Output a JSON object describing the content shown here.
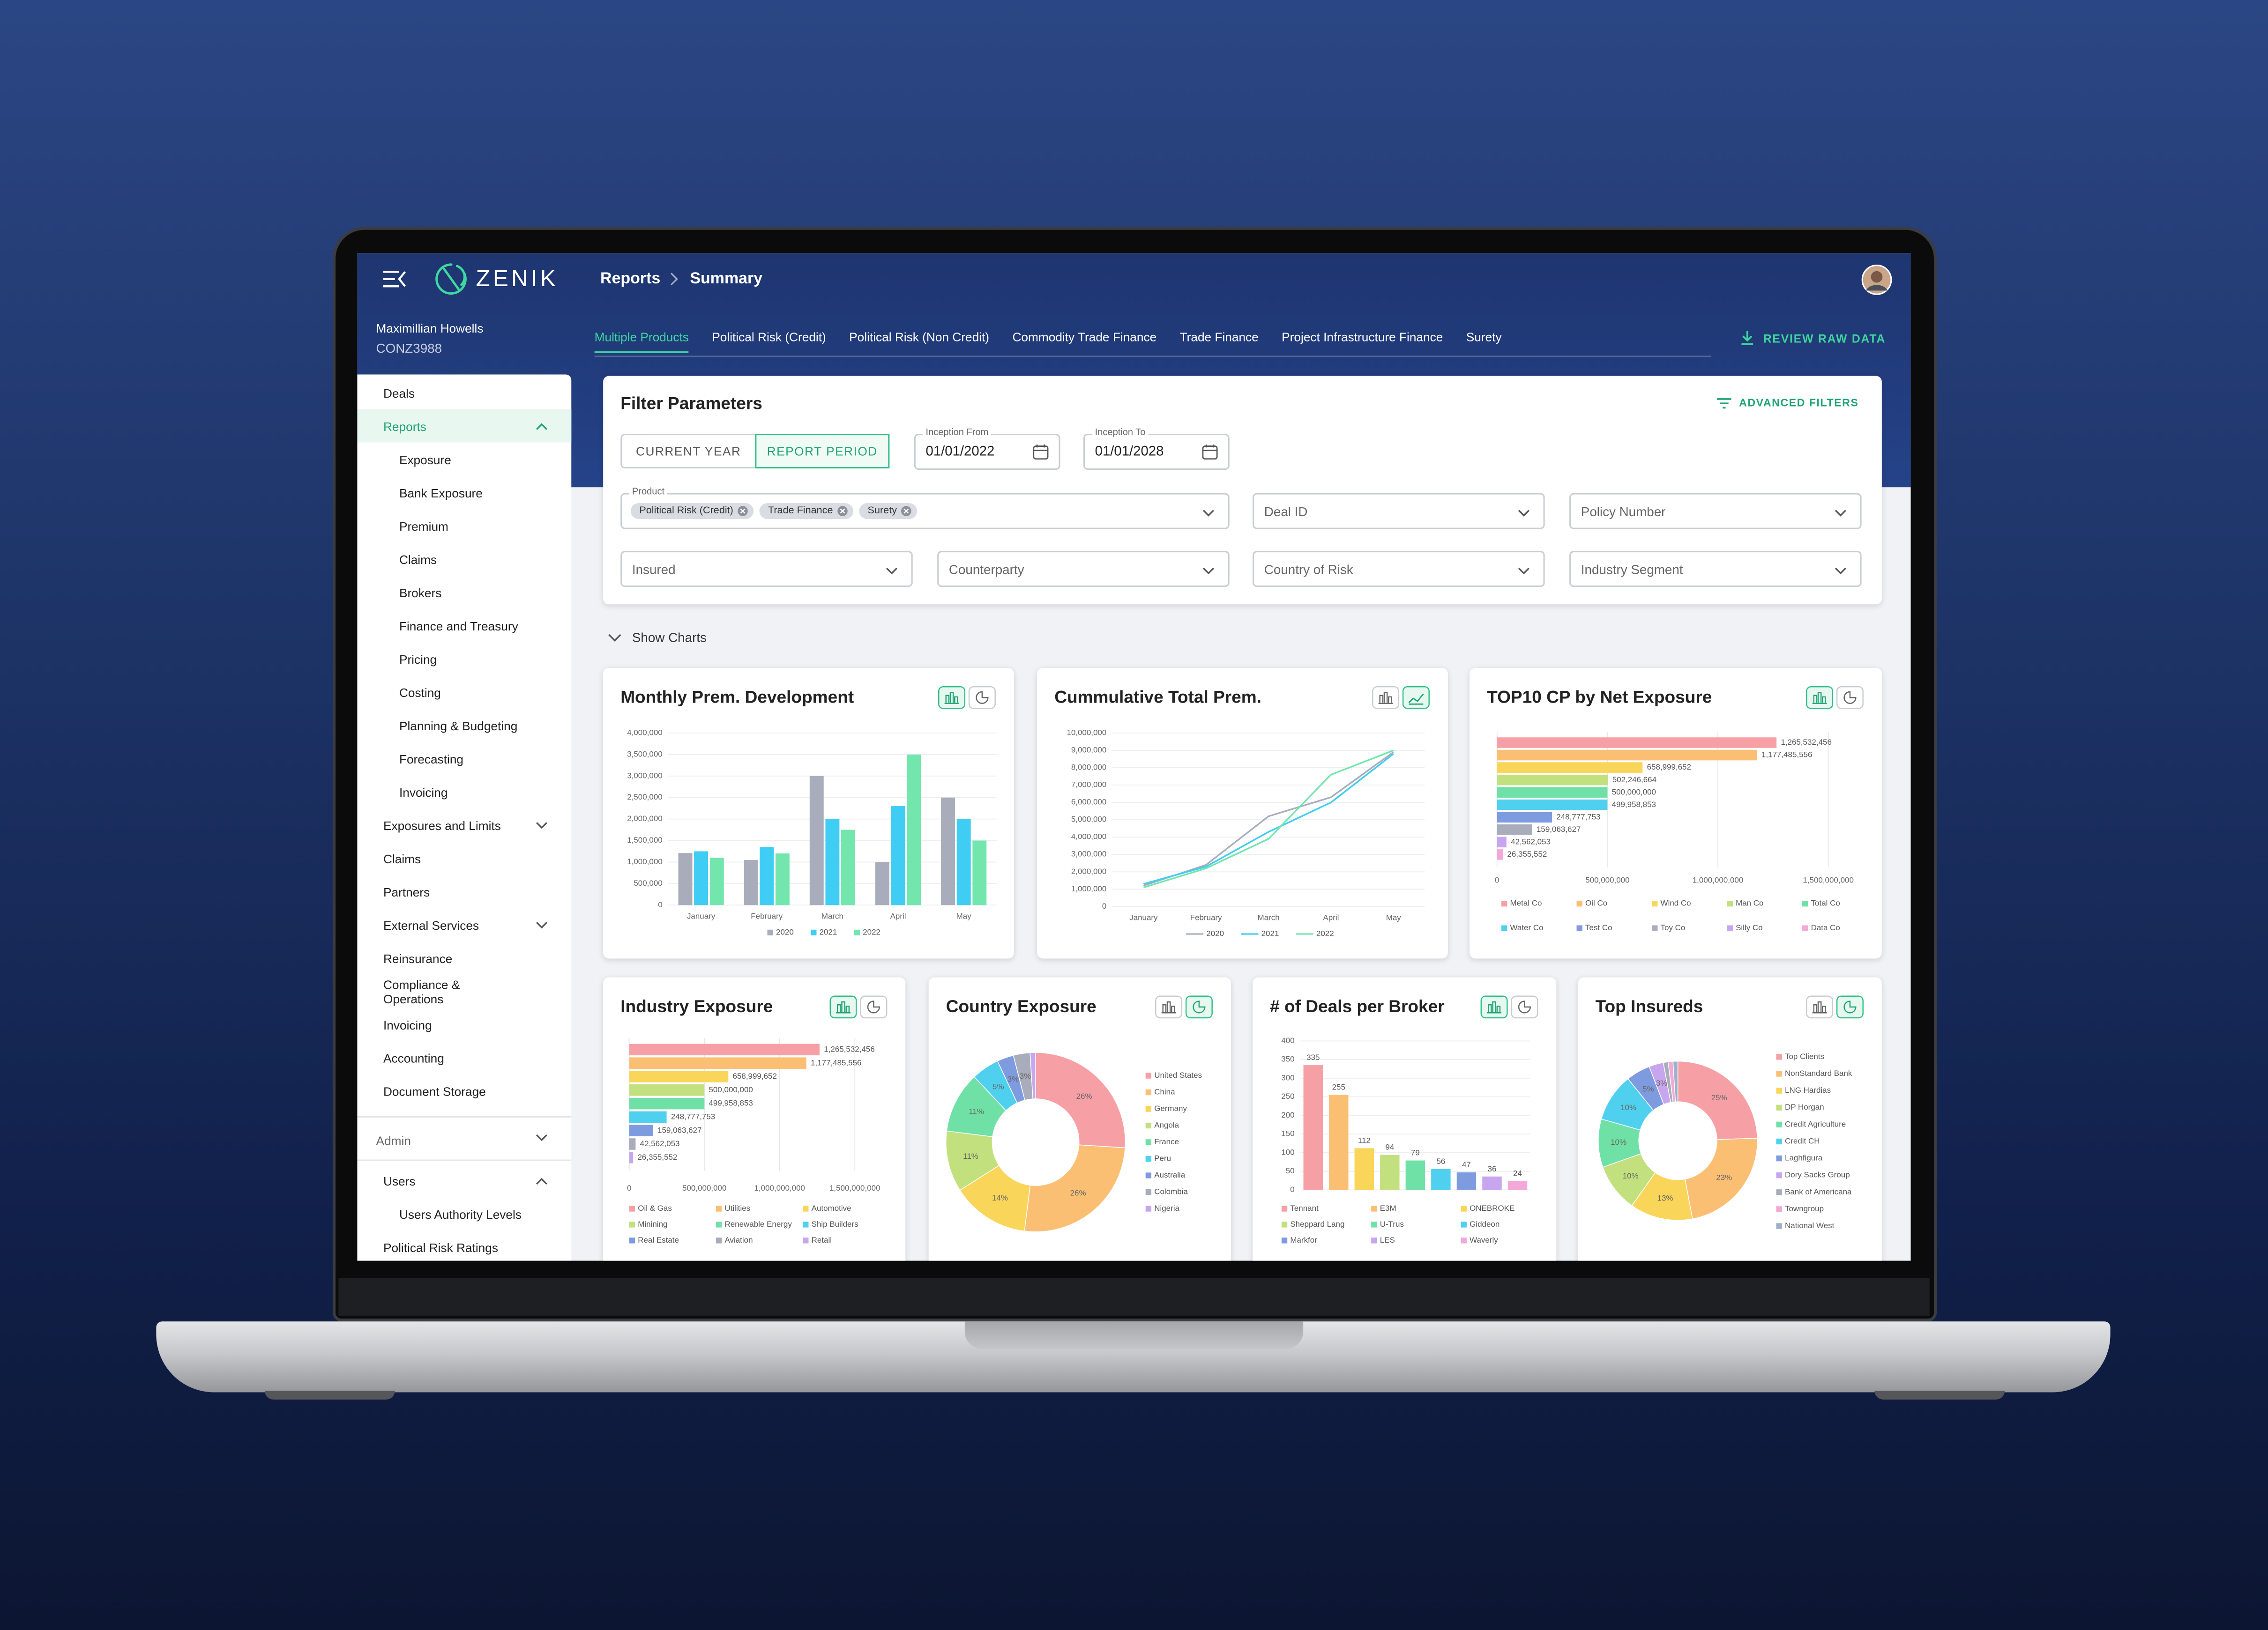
{
  "header": {
    "logo": "ZENIK",
    "breadcrumb": [
      "Reports",
      "Summary"
    ]
  },
  "sidebar": {
    "user": {
      "name": "Maximillian Howells",
      "id": "CONZ3988"
    },
    "menu": [
      {
        "label": "Deals"
      },
      {
        "label": "Reports",
        "expanded": true,
        "active": true,
        "children": [
          "Exposure",
          "Bank Exposure",
          "Premium",
          "Claims",
          "Brokers",
          "Finance and Treasury",
          "Pricing",
          "Costing",
          "Planning & Budgeting",
          "Forecasting",
          "Invoicing"
        ]
      },
      {
        "label": "Exposures and Limits",
        "expanded": false
      },
      {
        "label": "Claims"
      },
      {
        "label": "Partners"
      },
      {
        "label": "External Services",
        "expanded": false
      },
      {
        "label": "Reinsurance"
      },
      {
        "label": "Compliance & Operations"
      },
      {
        "label": "Invoicing"
      },
      {
        "label": "Accounting"
      },
      {
        "label": "Document Storage"
      }
    ],
    "admin": {
      "label": "Admin",
      "expanded": false,
      "items": [
        {
          "label": "Users",
          "expanded": true,
          "children": [
            "Users Authority Levels"
          ]
        },
        {
          "label": "Political Risk Ratings"
        }
      ]
    }
  },
  "tabs": [
    {
      "label": "Multiple Products",
      "active": true
    },
    {
      "label": "Political Risk (Credit)"
    },
    {
      "label": "Political Risk (Non Credit)"
    },
    {
      "label": "Commodity Trade Finance"
    },
    {
      "label": "Trade Finance"
    },
    {
      "label": "Project Infrastructure Finance"
    },
    {
      "label": "Surety"
    }
  ],
  "review_raw_data": "REVIEW RAW DATA",
  "filters": {
    "title": "Filter Parameters",
    "advanced": "ADVANCED FILTERS",
    "period_toggle": [
      {
        "label": "CURRENT YEAR"
      },
      {
        "label": "REPORT PERIOD",
        "active": true
      }
    ],
    "dates": [
      {
        "label": "Inception From",
        "value": "01/01/2022"
      },
      {
        "label": "Inception To",
        "value": "01/01/2028"
      }
    ],
    "product": {
      "label": "Product",
      "chips": [
        "Political Risk (Credit)",
        "Trade Finance",
        "Surety"
      ]
    },
    "selects": [
      "Deal ID",
      "Policy Number",
      "Insured",
      "Counterparty",
      "Country of Risk",
      "Industry Segment"
    ]
  },
  "show_charts": "Show Charts",
  "chart_data": [
    {
      "type": "bar",
      "title": "Monthly Prem. Development",
      "categories": [
        "January",
        "February",
        "March",
        "April",
        "May"
      ],
      "series": [
        {
          "name": "2020",
          "color": "#a9adbb",
          "values": [
            1210000,
            1050000,
            3000000,
            1000000,
            2500000
          ]
        },
        {
          "name": "2021",
          "color": "#3fcdf3",
          "values": [
            1250000,
            1350000,
            2000000,
            2300000,
            2000000
          ]
        },
        {
          "name": "2022",
          "color": "#72e6ad",
          "values": [
            1100000,
            1200000,
            1750000,
            3500000,
            1500000
          ]
        }
      ],
      "ylim": [
        0,
        4000000
      ],
      "yticks": [
        0,
        {
          "value": 500000,
          "label": "500,000"
        },
        {
          "value": 1000000,
          "label": "1,000,000"
        },
        {
          "value": 1500000,
          "label": "1,500,000"
        },
        {
          "value": 2000000,
          "label": "2,000,000"
        },
        {
          "value": 2500000,
          "label": "2,500,000"
        },
        {
          "value": 3000000,
          "label": "3,000,000"
        },
        {
          "value": 3500000,
          "label": "3,500,000"
        },
        {
          "value": 4000000,
          "label": "4,000,000"
        }
      ],
      "grid": true
    },
    {
      "type": "line",
      "title": "Cummulative Total Prem.",
      "categories": [
        "January",
        "February",
        "March",
        "April",
        "May"
      ],
      "series": [
        {
          "name": "2020",
          "color": "#a9adbb",
          "values": [
            1200000,
            2400000,
            5200000,
            6300000,
            8900000
          ]
        },
        {
          "name": "2021",
          "color": "#3fcdf3",
          "values": [
            1300000,
            2300000,
            4300000,
            6000000,
            8800000
          ]
        },
        {
          "name": "2022",
          "color": "#72e6ad",
          "values": [
            1100000,
            2200000,
            3900000,
            7600000,
            9000000
          ]
        }
      ],
      "ylim": [
        0,
        10000000
      ],
      "yticks": [
        0,
        {
          "value": 1000000,
          "label": "1,000,000"
        },
        {
          "value": 2000000,
          "label": "2,000,000"
        },
        {
          "value": 3000000,
          "label": "3,000,000"
        },
        {
          "value": 4000000,
          "label": "4,000,000"
        },
        {
          "value": 5000000,
          "label": "5,000,000"
        },
        {
          "value": 6000000,
          "label": "6,000,000"
        },
        {
          "value": 7000000,
          "label": "7,000,000"
        },
        {
          "value": 8000000,
          "label": "8,000,000"
        },
        {
          "value": 9000000,
          "label": "9,000,000"
        },
        {
          "value": 10000000,
          "label": "10,000,000"
        }
      ],
      "grid": true
    },
    {
      "type": "hbar",
      "title": "TOP10 CP by Net Exposure",
      "categories": [
        "Metal Co",
        "Oil Co",
        "Wind Co",
        "Man Co",
        "Total Co",
        "Water Co",
        "Test Co",
        "Toy Co",
        "Silly Co",
        "Data Co"
      ],
      "values": [
        1265532456,
        1177485556,
        658999652,
        502246664,
        500000000,
        499958853,
        248777753,
        159063627,
        42562053,
        26355552
      ],
      "value_labels": [
        "1,265,532,456",
        "1,177,485,556",
        "658,999,652",
        "502,246,664",
        "500,000,000",
        "499,958,853",
        "248,777,753",
        "159,063,627",
        "42,562,053",
        "26,355,552"
      ],
      "colors": [
        "#f6a0a6",
        "#fbbf74",
        "#f9d55a",
        "#c3e07f",
        "#6fe0a6",
        "#4fd0ef",
        "#7f9be0",
        "#a9adbb",
        "#c8a6ef",
        "#f3a8d8"
      ],
      "xlim": [
        0,
        1500000000
      ],
      "xticks": [
        0,
        {
          "value": 500000000,
          "label": "500,000,000"
        },
        {
          "value": 1000000000,
          "label": "1,000,000,000"
        },
        {
          "value": 1500000000,
          "label": "1,500,000,000"
        }
      ],
      "grid": true
    },
    {
      "type": "hbar",
      "title": "Industry Exposure",
      "categories": [
        "Oil & Gas",
        "Utilities",
        "Automotive",
        "Minining",
        "Renewable Energy",
        "Ship Builders",
        "Real Estate",
        "Aviation",
        "Retail"
      ],
      "values": [
        1265532456,
        1177485556,
        658999652,
        500000000,
        499958853,
        248777753,
        159063627,
        42562053,
        26355552
      ],
      "value_labels": [
        "1,265,532,456",
        "1,177,485,556",
        "658,999,652",
        "500,000,000",
        "499,958,853",
        "248,777,753",
        "159,063,627",
        "42,562,053",
        "26,355,552"
      ],
      "colors": [
        "#f6a0a6",
        "#fbbf74",
        "#f9d55a",
        "#c3e07f",
        "#6fe0a6",
        "#4fd0ef",
        "#7f9be0",
        "#a9adbb",
        "#c8a6ef"
      ],
      "xlim": [
        0,
        1500000000
      ],
      "xticks": [
        0,
        {
          "value": 500000000,
          "label": "500,000,000"
        },
        {
          "value": 1000000000,
          "label": "1,000,000,000"
        },
        {
          "value": 1500000000,
          "label": "1,500,000,000"
        }
      ],
      "grid": true
    },
    {
      "type": "donut",
      "title": "Country Exposure",
      "categories": [
        "United States",
        "China",
        "Germany",
        "Angola",
        "France",
        "Peru",
        "Australia",
        "Colombia",
        "Nigeria"
      ],
      "values": [
        26,
        26,
        14,
        11,
        11,
        5,
        3,
        3,
        1
      ],
      "value_labels": [
        "26%",
        "26%",
        "14%",
        "11%",
        "11%",
        "5%",
        "3%",
        "3%",
        null
      ],
      "colors": [
        "#f6a0a6",
        "#fbbf74",
        "#f9d55a",
        "#c3e07f",
        "#6fe0a6",
        "#4fd0ef",
        "#7f9be0",
        "#a9adbb",
        "#c8a6ef"
      ]
    },
    {
      "type": "bar",
      "title": "# of Deals per Broker",
      "categories": [
        "Tennant",
        "E3M",
        "ONEBROKE",
        "Sheppard Lang",
        "U-Trus",
        "Giddeon",
        "Markfor",
        "LES",
        "Waverly"
      ],
      "values": [
        335,
        255,
        112,
        94,
        79,
        56,
        47,
        36,
        24
      ],
      "colors": [
        "#f6a0a6",
        "#fbbf74",
        "#f9d55a",
        "#c3e07f",
        "#6fe0a6",
        "#4fd0ef",
        "#7f9be0",
        "#c8a6ef",
        "#f3a8d8"
      ],
      "ylim": [
        0,
        400
      ],
      "yticks": [
        0,
        50,
        100,
        150,
        200,
        250,
        300,
        350,
        400
      ],
      "grid": true
    },
    {
      "type": "donut",
      "title": "Top Insureds",
      "categories": [
        "Top Clients",
        "NonStandard Bank",
        "LNG Hardias",
        "DP Horgan",
        "Credit Agriculture",
        "Credit CH",
        "Laghfigura",
        "Dory Sacks Group",
        "Bank of Americana",
        "Towngroup",
        "National West"
      ],
      "values": [
        25,
        23,
        13,
        10,
        10,
        10,
        5,
        3,
        1,
        1,
        1
      ],
      "value_labels": [
        "25%",
        "23%",
        "13%",
        "10%",
        "10%",
        "10%",
        "5%",
        "3%",
        null,
        null,
        null
      ],
      "colors": [
        "#f6a0a6",
        "#fbbf74",
        "#f9d55a",
        "#c3e07f",
        "#6fe0a6",
        "#4fd0ef",
        "#7f9be0",
        "#c8a6ef",
        "#a9adbb",
        "#f3a8d8",
        "#9fb0c8"
      ]
    }
  ]
}
